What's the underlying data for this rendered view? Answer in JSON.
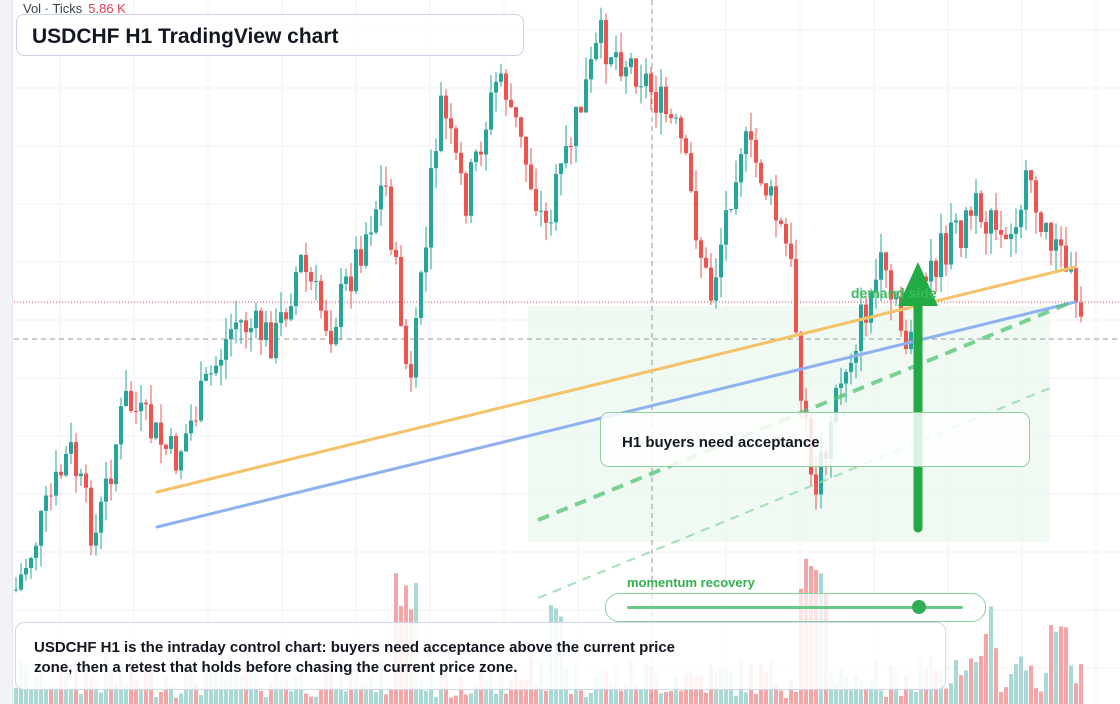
{
  "volume": {
    "label": "Vol · Ticks",
    "value": "5.86 K"
  },
  "title": "USDCHF H1 TradingView chart",
  "callout": "H1 buyers need acceptance",
  "zone_label": "demand side",
  "momentum": {
    "label": "momentum recovery",
    "level": 0.87
  },
  "note": "USDCHF H1 is the intraday control chart: buyers need acceptance above the current price zone, then a retest that holds before chasing the current price zone.",
  "colors": {
    "bull": "#26a69a",
    "bear": "#ef5350",
    "vol_bull": "#a9d9d4",
    "vol_bear": "#f4a6a6",
    "accent_green": "#22aa44",
    "trend_orange": "#f5c169",
    "trend_blue": "#8fb1ef"
  },
  "chart_data": {
    "type": "candlestick",
    "title": "USDCHF H1 TradingView chart",
    "annotations": [
      "demand side",
      "H1 buyers need acceptance",
      "momentum recovery"
    ]
  }
}
